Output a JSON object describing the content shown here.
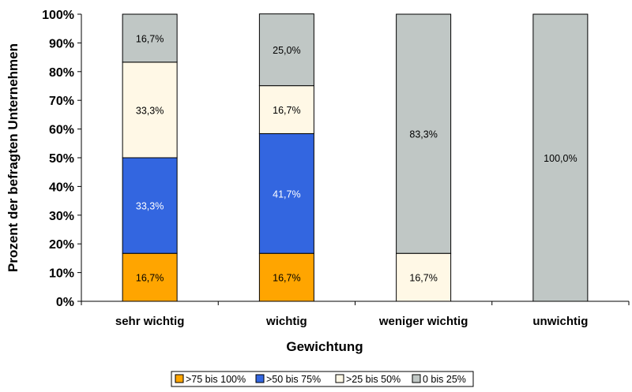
{
  "chart_data": {
    "type": "bar",
    "stacked": true,
    "xlabel": "Gewichtung",
    "ylabel": "Prozent der befragten Unternehmen",
    "ylim": [
      0,
      100
    ],
    "y_ticks": [
      "0%",
      "10%",
      "20%",
      "30%",
      "40%",
      "50%",
      "60%",
      "70%",
      "80%",
      "90%",
      "100%"
    ],
    "categories": [
      "sehr wichtig",
      "wichtig",
      "weniger wichtig",
      "unwichtig"
    ],
    "series": [
      {
        "name": ">75 bis 100%",
        "color": "#FFA500",
        "values": [
          16.7,
          16.7,
          0,
          0
        ],
        "labels": [
          "16,7%",
          "16,7%",
          "",
          ""
        ]
      },
      {
        "name": ">50 bis 75%",
        "color": "#3366E0",
        "values": [
          33.3,
          41.7,
          0,
          0
        ],
        "labels": [
          "33,3%",
          "41,7%",
          "",
          ""
        ]
      },
      {
        "name": ">25 bis 50%",
        "color": "#FFF8E6",
        "values": [
          33.3,
          16.7,
          16.7,
          0
        ],
        "labels": [
          "33,3%",
          "16,7%",
          "16,7%",
          ""
        ]
      },
      {
        "name": "0 bis 25%",
        "color": "#C0C7C5",
        "values": [
          16.7,
          25.0,
          83.3,
          100.0
        ],
        "labels": [
          "16,7%",
          "25,0%",
          "83,3%",
          "100,0%"
        ]
      }
    ],
    "grid": false,
    "legend_position": "bottom"
  }
}
